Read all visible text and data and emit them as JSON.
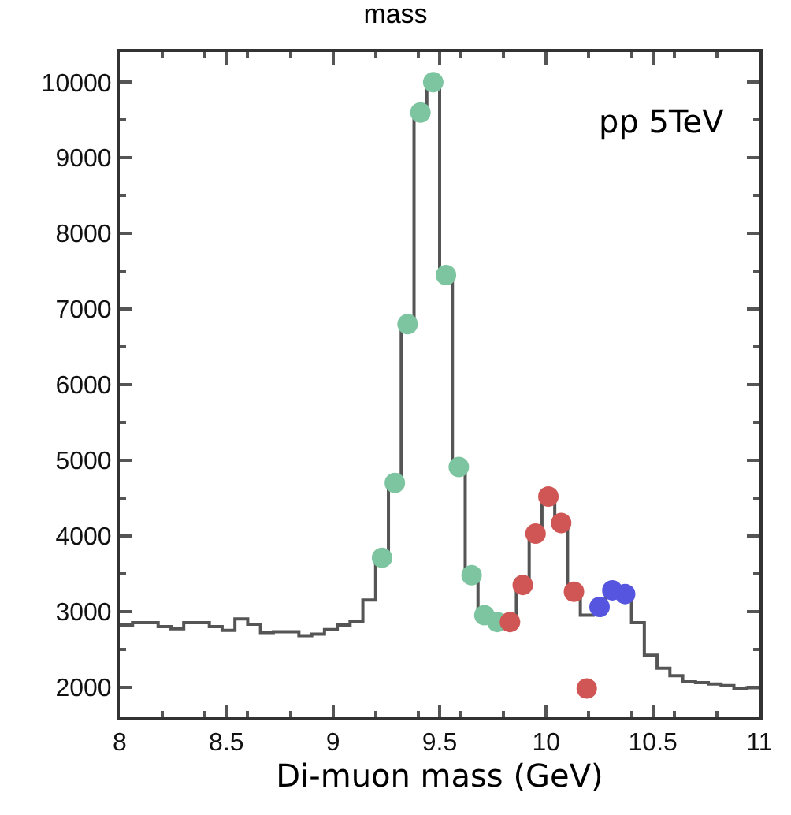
{
  "chart_data": {
    "type": "histogram",
    "title": "mass",
    "xlabel": "Di-muon mass (GeV)",
    "annotations": [
      "pp 5TeV"
    ],
    "bins": [
      8.0,
      8.06,
      8.12,
      8.18,
      8.24,
      8.3,
      8.36,
      8.42,
      8.48,
      8.54,
      8.6,
      8.66,
      8.72,
      8.78,
      8.84,
      8.9,
      8.96,
      9.02,
      9.08,
      9.14,
      9.2,
      9.26,
      9.32,
      9.38,
      9.44,
      9.5,
      9.56,
      9.62,
      9.68,
      9.74,
      9.8,
      9.86,
      9.92,
      9.98,
      10.04,
      10.1,
      10.16,
      10.22,
      10.28,
      10.34,
      10.4,
      10.46,
      10.52,
      10.58,
      10.64,
      10.7,
      10.76,
      10.82,
      10.88,
      10.94,
      11.0
    ],
    "values": [
      2820,
      2850,
      2850,
      2800,
      2770,
      2850,
      2850,
      2800,
      2750,
      2900,
      2830,
      2720,
      2730,
      2730,
      2680,
      2700,
      2760,
      2820,
      2870,
      3150,
      3710,
      4700,
      6800,
      9600,
      10000,
      7450,
      4910,
      3480,
      2950,
      2860,
      2860,
      3350,
      4030,
      4520,
      4170,
      3260,
      2950,
      3060,
      3280,
      3230,
      2850,
      2420,
      2250,
      2150,
      2070,
      2060,
      2040,
      2020,
      1980,
      1990
    ],
    "color": "#555555",
    "series": [
      {
        "type": "scatter",
        "color": "#7dc5a0",
        "x": [
          9.23,
          9.29,
          9.35,
          9.41,
          9.47,
          9.53,
          9.59,
          9.65,
          9.71,
          9.77
        ],
        "values": [
          3710,
          4700,
          6800,
          9600,
          10000,
          7450,
          4910,
          3480,
          2950,
          2860
        ]
      },
      {
        "type": "scatter",
        "color": "#d05555",
        "x": [
          9.83,
          9.89,
          9.95,
          10.01,
          10.07,
          10.13,
          10.19
        ],
        "values": [
          2860,
          3350,
          4030,
          4520,
          4170,
          3260,
          1980
        ]
      },
      {
        "type": "scatter",
        "color": "#5555e0",
        "x": [
          10.25,
          10.31,
          10.37
        ],
        "values": [
          3060,
          3280,
          3230
        ]
      }
    ],
    "marker": "circle",
    "xlim": [
      8,
      11
    ],
    "xticks": [
      8,
      8.5,
      9,
      9.5,
      10,
      10.5,
      11
    ],
    "ylim": [
      1600,
      10400
    ],
    "yticks": [
      2000,
      3000,
      4000,
      5000,
      6000,
      7000,
      8000,
      9000,
      10000
    ]
  }
}
